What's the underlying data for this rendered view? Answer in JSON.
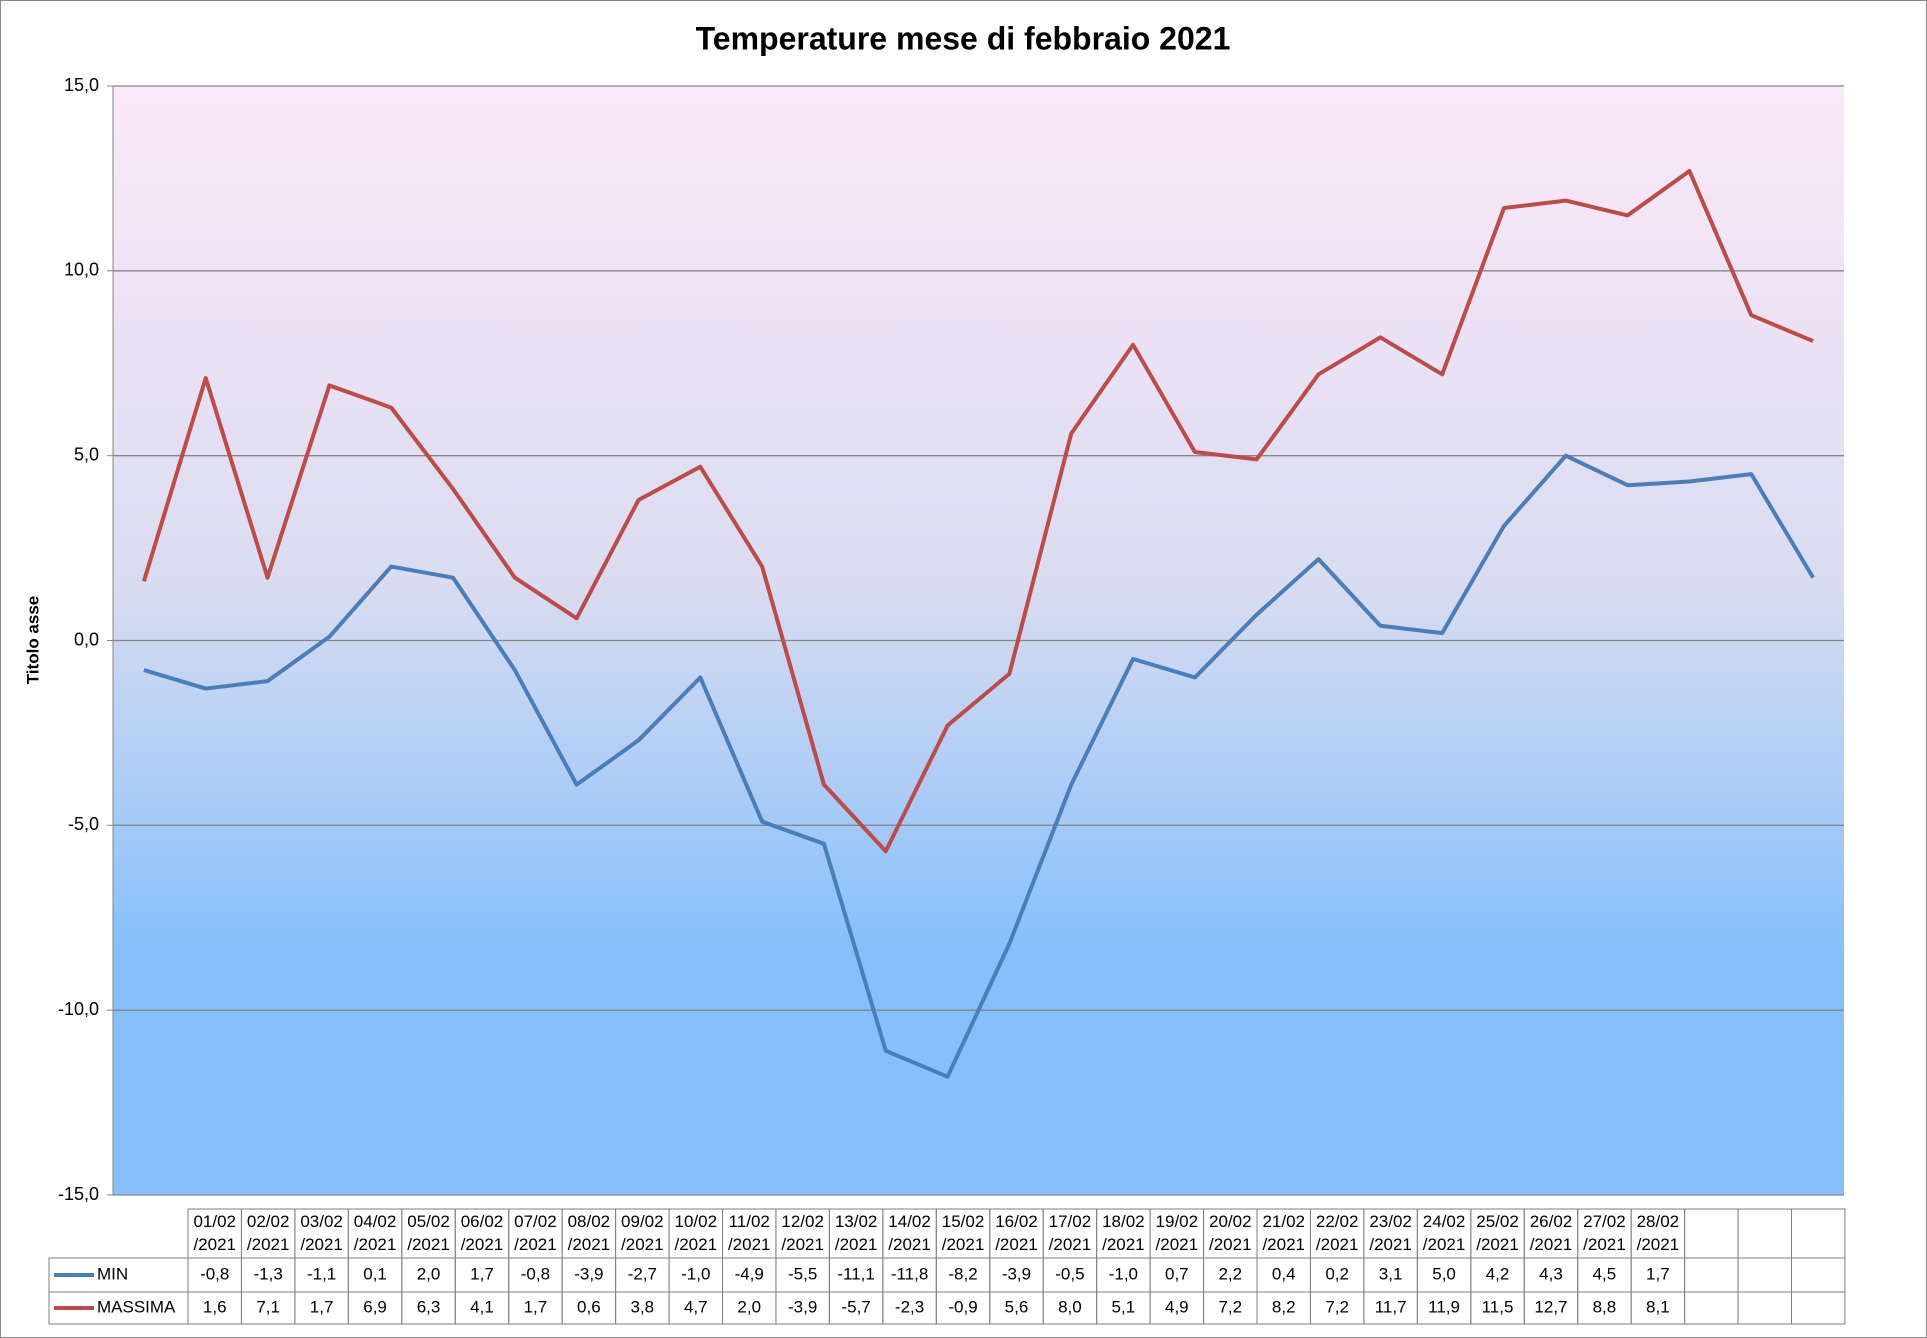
{
  "chart_data": {
    "type": "line",
    "title": "Temperature mese di febbraio 2021",
    "y_label": "Titolo asse",
    "categories": [
      "01/02/2021",
      "02/02/2021",
      "03/02/2021",
      "04/02/2021",
      "05/02/2021",
      "06/02/2021",
      "07/02/2021",
      "08/02/2021",
      "09/02/2021",
      "10/02/2021",
      "11/02/2021",
      "12/02/2021",
      "13/02/2021",
      "14/02/2021",
      "15/02/2021",
      "16/02/2021",
      "17/02/2021",
      "18/02/2021",
      "19/02/2021",
      "20/02/2021",
      "21/02/2021",
      "22/02/2021",
      "23/02/2021",
      "24/02/2021",
      "25/02/2021",
      "26/02/2021",
      "27/02/2021",
      "28/02/2021"
    ],
    "series": [
      {
        "name": "MIN",
        "color": "#4a7ebb",
        "values": [
          -0.8,
          -1.3,
          -1.1,
          0.1,
          2.0,
          1.7,
          -0.8,
          -3.9,
          -2.7,
          -1.0,
          -4.9,
          -5.5,
          -11.1,
          -11.8,
          -8.2,
          -3.9,
          -0.5,
          -1.0,
          0.7,
          2.2,
          0.4,
          0.2,
          3.1,
          5.0,
          4.2,
          4.3,
          4.5,
          1.7
        ],
        "value_labels": [
          "-0,8",
          "-1,3",
          "-1,1",
          "0,1",
          "2,0",
          "1,7",
          "-0,8",
          "-3,9",
          "-2,7",
          "-1,0",
          "-4,9",
          "-5,5",
          "-11,1",
          "-11,8",
          "-8,2",
          "-3,9",
          "-0,5",
          "-1,0",
          "0,7",
          "2,2",
          "0,4",
          "0,2",
          "3,1",
          "5,0",
          "4,2",
          "4,3",
          "4,5",
          "1,7"
        ]
      },
      {
        "name": "MASSIMA",
        "color": "#be4b48",
        "values": [
          1.6,
          7.1,
          1.7,
          6.9,
          6.3,
          4.1,
          1.7,
          0.6,
          3.8,
          4.7,
          2.0,
          -3.9,
          -5.7,
          -2.3,
          -0.9,
          5.6,
          8.0,
          5.1,
          4.9,
          7.2,
          8.2,
          7.2,
          11.7,
          11.9,
          11.5,
          12.7,
          8.8,
          8.1
        ],
        "value_labels": [
          "1,6",
          "7,1",
          "1,7",
          "6,9",
          "6,3",
          "4,1",
          "1,7",
          "0,6",
          "3,8",
          "4,7",
          "2,0",
          "-3,9",
          "-5,7",
          "-2,3",
          "-0,9",
          "5,6",
          "8,0",
          "5,1",
          "4,9",
          "7,2",
          "8,2",
          "7,2",
          "11,7",
          "11,9",
          "11,5",
          "12,7",
          "8,8",
          "8,1"
        ]
      }
    ],
    "ylim": [
      -15,
      15
    ],
    "yticks": [
      {
        "value": -15,
        "label": "-15,0"
      },
      {
        "value": -10,
        "label": "-10,0"
      },
      {
        "value": -5,
        "label": "-5,0"
      },
      {
        "value": 0,
        "label": "0,0"
      },
      {
        "value": 5,
        "label": "5,0"
      },
      {
        "value": 10,
        "label": "10,0"
      },
      {
        "value": 15,
        "label": "15,0"
      }
    ],
    "grid": true
  }
}
